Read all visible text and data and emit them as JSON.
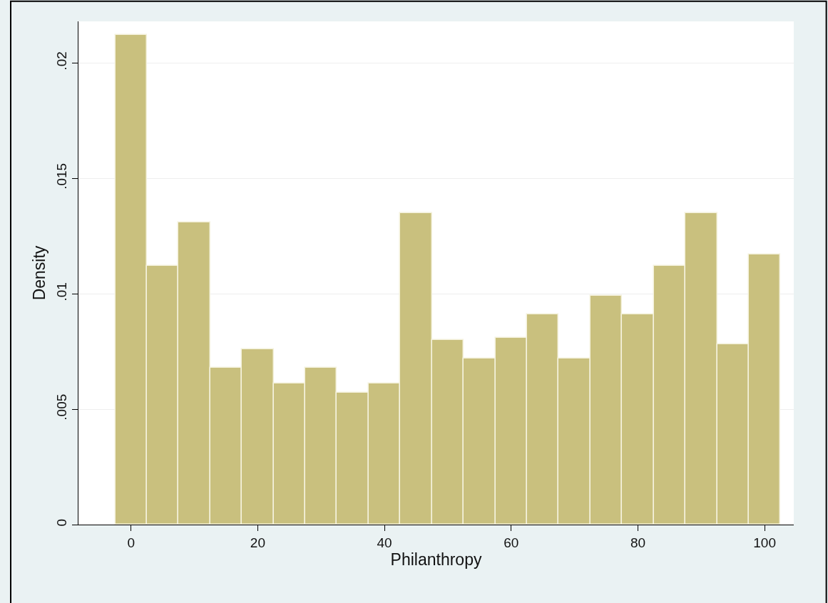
{
  "chart_data": {
    "type": "histogram",
    "xlabel": "Philanthropy",
    "ylabel": "Density",
    "bins": [
      -2.5,
      2.5,
      7.5,
      12.5,
      17.5,
      22.5,
      27.5,
      32.5,
      37.5,
      42.5,
      47.5,
      52.5,
      57.5,
      62.5,
      67.5,
      72.5,
      77.5,
      82.5,
      87.5,
      92.5,
      97.5,
      102.5
    ],
    "values": [
      0.0212,
      0.0112,
      0.0131,
      0.0068,
      0.0076,
      0.0061,
      0.0068,
      0.0057,
      0.0061,
      0.0135,
      0.008,
      0.0072,
      0.0081,
      0.0091,
      0.0072,
      0.0099,
      0.0091,
      0.0112,
      0.0135,
      0.0078,
      0.0117
    ],
    "color": "#c9c07e",
    "xlim": [
      -8.3,
      104.6
    ],
    "xticks": [
      0,
      20,
      40,
      60,
      80,
      100
    ],
    "ylim": [
      0,
      0.0218
    ],
    "yticks": [
      {
        "value": 0,
        "label": "0"
      },
      {
        "value": 0.005,
        "label": ".005"
      },
      {
        "value": 0.01,
        "label": ".01"
      },
      {
        "value": 0.015,
        "label": ".015"
      },
      {
        "value": 0.02,
        "label": ".02"
      }
    ],
    "grid": "y"
  }
}
